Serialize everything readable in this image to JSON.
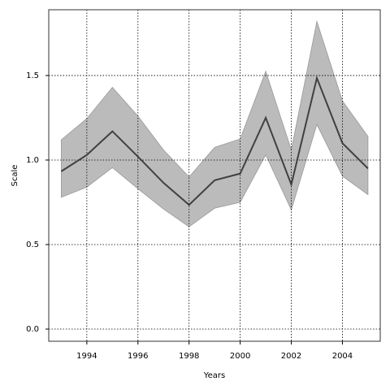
{
  "chart_data": {
    "type": "line-band",
    "x_label": "Years",
    "y_label": "Scale",
    "x": [
      1993,
      1994,
      1995,
      1996,
      1997,
      1998,
      1999,
      2000,
      2001,
      2002,
      2003,
      2004,
      2005
    ],
    "values": [
      0.933,
      1.03,
      1.17,
      1.02,
      0.865,
      0.735,
      0.88,
      0.92,
      1.25,
      0.855,
      1.485,
      1.1,
      0.95
    ],
    "upper": [
      1.12,
      1.245,
      1.43,
      1.26,
      1.06,
      0.9,
      1.075,
      1.125,
      1.525,
      1.06,
      1.82,
      1.35,
      1.14
    ],
    "lower": [
      0.78,
      0.84,
      0.955,
      0.83,
      0.71,
      0.605,
      0.715,
      0.75,
      1.03,
      0.705,
      1.21,
      0.905,
      0.795
    ],
    "color": "#404040",
    "band_color": "#bbbbbb",
    "xlim": [
      1992.51,
      2005.48
    ],
    "ylim": [
      -0.072,
      1.889
    ],
    "xticks": [
      1994,
      1996,
      1998,
      2000,
      2002,
      2004
    ],
    "yticks": [
      {
        "value": 0,
        "label": "0.0"
      },
      0.5,
      {
        "value": 1,
        "label": "1.0"
      },
      1.5
    ],
    "grid": true
  }
}
